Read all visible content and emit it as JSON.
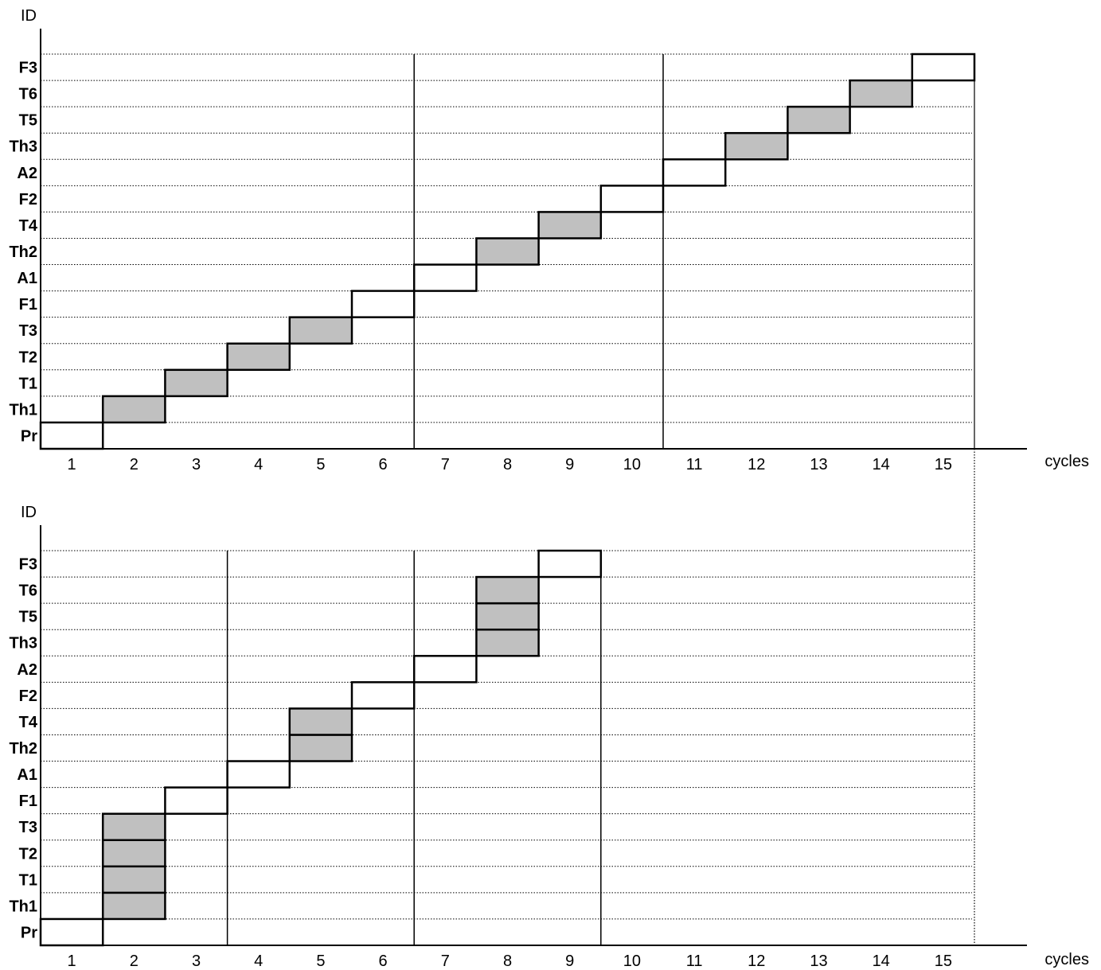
{
  "panels": [
    {
      "y_axis_title": "ID",
      "x_axis_title": "cycles",
      "rows": [
        "Pr",
        "Th1",
        "T1",
        "T2",
        "T3",
        "F1",
        "A1",
        "Th2",
        "T4",
        "F2",
        "A2",
        "Th3",
        "T5",
        "T6",
        "F3"
      ],
      "cycles": [
        "1",
        "2",
        "3",
        "4",
        "5",
        "6",
        "7",
        "8",
        "9",
        "10",
        "11",
        "12",
        "13",
        "14",
        "15"
      ],
      "separators_after_cycle": [
        6,
        10,
        15
      ],
      "tasks": [
        {
          "row": "Pr",
          "cycle": 1,
          "shaded": false
        },
        {
          "row": "Th1",
          "cycle": 2,
          "shaded": true
        },
        {
          "row": "T1",
          "cycle": 3,
          "shaded": true
        },
        {
          "row": "T2",
          "cycle": 4,
          "shaded": true
        },
        {
          "row": "T3",
          "cycle": 5,
          "shaded": true
        },
        {
          "row": "F1",
          "cycle": 6,
          "shaded": false
        },
        {
          "row": "A1",
          "cycle": 7,
          "shaded": false
        },
        {
          "row": "Th2",
          "cycle": 8,
          "shaded": true
        },
        {
          "row": "T4",
          "cycle": 9,
          "shaded": true
        },
        {
          "row": "F2",
          "cycle": 10,
          "shaded": false
        },
        {
          "row": "A2",
          "cycle": 11,
          "shaded": false
        },
        {
          "row": "Th3",
          "cycle": 12,
          "shaded": true
        },
        {
          "row": "T5",
          "cycle": 13,
          "shaded": true
        },
        {
          "row": "T6",
          "cycle": 14,
          "shaded": true
        },
        {
          "row": "F3",
          "cycle": 15,
          "shaded": false
        }
      ]
    },
    {
      "y_axis_title": "ID",
      "x_axis_title": "cycles",
      "rows": [
        "Pr",
        "Th1",
        "T1",
        "T2",
        "T3",
        "F1",
        "A1",
        "Th2",
        "T4",
        "F2",
        "A2",
        "Th3",
        "T5",
        "T6",
        "F3"
      ],
      "cycles": [
        "1",
        "2",
        "3",
        "4",
        "5",
        "6",
        "7",
        "8",
        "9",
        "10",
        "11",
        "12",
        "13",
        "14",
        "15"
      ],
      "separators_after_cycle": [
        3,
        6,
        9
      ],
      "tasks": [
        {
          "row": "Pr",
          "cycle": 1,
          "shaded": false
        },
        {
          "row": "Th1",
          "cycle": 2,
          "shaded": true
        },
        {
          "row": "T1",
          "cycle": 2,
          "shaded": true
        },
        {
          "row": "T2",
          "cycle": 2,
          "shaded": true
        },
        {
          "row": "T3",
          "cycle": 2,
          "shaded": true
        },
        {
          "row": "F1",
          "cycle": 3,
          "shaded": false
        },
        {
          "row": "A1",
          "cycle": 4,
          "shaded": false
        },
        {
          "row": "Th2",
          "cycle": 5,
          "shaded": true
        },
        {
          "row": "T4",
          "cycle": 5,
          "shaded": true
        },
        {
          "row": "F2",
          "cycle": 6,
          "shaded": false
        },
        {
          "row": "A2",
          "cycle": 7,
          "shaded": false
        },
        {
          "row": "Th3",
          "cycle": 8,
          "shaded": true
        },
        {
          "row": "T5",
          "cycle": 8,
          "shaded": true
        },
        {
          "row": "T6",
          "cycle": 8,
          "shaded": true
        },
        {
          "row": "F3",
          "cycle": 9,
          "shaded": false
        }
      ]
    }
  ],
  "colors": {
    "shaded_fill": "#c0c0c0",
    "empty_fill": "#ffffff",
    "line": "#000000"
  }
}
